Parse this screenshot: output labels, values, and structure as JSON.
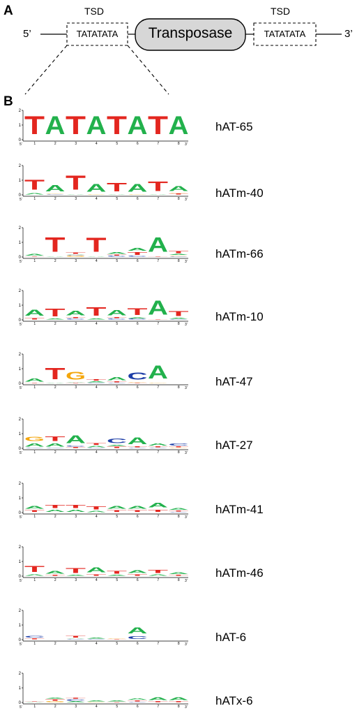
{
  "panel_a": {
    "label": "A",
    "tsd_left_label": "TSD",
    "tsd_right_label": "TSD",
    "five_prime": "5’",
    "three_prime": "3’",
    "tsd_left_seq": "TATATATA",
    "tsd_right_seq": "TATATATA",
    "transposase_label": "Transposase"
  },
  "panel_b": {
    "label": "B",
    "axis": {
      "y_ticks": [
        "0",
        "1",
        "2"
      ],
      "x_ticks": [
        "1",
        "2",
        "3",
        "4",
        "5",
        "6",
        "7",
        "8"
      ],
      "start": "5’",
      "end": "3’"
    },
    "colors": {
      "A": "#22b14c",
      "T": "#e3261f",
      "G": "#f4a60c",
      "C": "#1f3fa8"
    }
  },
  "chart_data": {
    "type": "sequence-logo",
    "y_range": [
      0,
      2
    ],
    "positions": [
      1,
      2,
      3,
      4,
      5,
      6,
      7,
      8
    ],
    "logos": [
      {
        "name": "hAT-65",
        "stacks": [
          [
            [
              "T",
              2
            ]
          ],
          [
            [
              "A",
              2
            ]
          ],
          [
            [
              "T",
              2
            ]
          ],
          [
            [
              "A",
              2
            ]
          ],
          [
            [
              "T",
              2
            ]
          ],
          [
            [
              "A",
              2
            ]
          ],
          [
            [
              "T",
              2
            ]
          ],
          [
            [
              "A",
              2
            ]
          ]
        ]
      },
      {
        "name": "hATm-40",
        "stacks": [
          [
            [
              "A",
              0.15
            ],
            [
              "T",
              1.1
            ]
          ],
          [
            [
              "C",
              0.05
            ],
            [
              "G",
              0.05
            ],
            [
              "A",
              0.7
            ]
          ],
          [
            [
              "A",
              0.05
            ],
            [
              "T",
              1.55
            ]
          ],
          [
            [
              "G",
              0.05
            ],
            [
              "A",
              0.85
            ]
          ],
          [
            [
              "A",
              0.05
            ],
            [
              "T",
              0.95
            ]
          ],
          [
            [
              "G",
              0.05
            ],
            [
              "A",
              0.85
            ]
          ],
          [
            [
              "A",
              0.05
            ],
            [
              "T",
              1.05
            ]
          ],
          [
            [
              "T",
              0.1
            ],
            [
              "G",
              0.05
            ],
            [
              "A",
              0.55
            ]
          ]
        ]
      },
      {
        "name": "hATm-66",
        "stacks": [
          [
            [
              "T",
              0.05
            ],
            [
              "A",
              0.2
            ]
          ],
          [
            [
              "A",
              0.05
            ],
            [
              "T",
              1.6
            ]
          ],
          [
            [
              "G",
              0.08
            ],
            [
              "C",
              0.06
            ],
            [
              "A",
              0.06
            ],
            [
              "T",
              0.12
            ]
          ],
          [
            [
              "A",
              0.05
            ],
            [
              "T",
              1.55
            ]
          ],
          [
            [
              "C",
              0.08
            ],
            [
              "T",
              0.1
            ],
            [
              "A",
              0.2
            ]
          ],
          [
            [
              "C",
              0.08
            ],
            [
              "T",
              0.3
            ],
            [
              "A",
              0.3
            ]
          ],
          [
            [
              "T",
              0.05
            ],
            [
              "A",
              1.6
            ]
          ],
          [
            [
              "C",
              0.06
            ],
            [
              "G",
              0.06
            ],
            [
              "A",
              0.1
            ],
            [
              "T",
              0.25
            ]
          ]
        ]
      },
      {
        "name": "hATm-10",
        "stacks": [
          [
            [
              "T",
              0.15
            ],
            [
              "A",
              0.65
            ]
          ],
          [
            [
              "A",
              0.08
            ],
            [
              "T",
              0.85
            ]
          ],
          [
            [
              "C",
              0.1
            ],
            [
              "T",
              0.1
            ],
            [
              "A",
              0.5
            ]
          ],
          [
            [
              "A",
              0.1
            ],
            [
              "T",
              0.95
            ]
          ],
          [
            [
              "C",
              0.1
            ],
            [
              "T",
              0.1
            ],
            [
              "A",
              0.6
            ]
          ],
          [
            [
              "C",
              0.08
            ],
            [
              "A",
              0.1
            ],
            [
              "T",
              0.75
            ]
          ],
          [
            [
              "T",
              0.05
            ],
            [
              "A",
              1.55
            ]
          ],
          [
            [
              "C",
              0.05
            ],
            [
              "A",
              0.1
            ],
            [
              "T",
              0.55
            ]
          ]
        ]
      },
      {
        "name": "hAT-47",
        "stacks": [
          [
            [
              "T",
              0.05
            ],
            [
              "A",
              0.35
            ]
          ],
          [
            [
              "A",
              0.05
            ],
            [
              "T",
              1.25
            ]
          ],
          [
            [
              "T",
              0.05
            ],
            [
              "A",
              0.05
            ],
            [
              "G",
              0.85
            ]
          ],
          [
            [
              "C",
              0.05
            ],
            [
              "A",
              0.1
            ],
            [
              "T",
              0.15
            ]
          ],
          [
            [
              "C",
              0.05
            ],
            [
              "T",
              0.1
            ],
            [
              "A",
              0.35
            ]
          ],
          [
            [
              "T",
              0.05
            ],
            [
              "G",
              0.05
            ],
            [
              "C",
              0.8
            ]
          ],
          [
            [
              "G",
              0.05
            ],
            [
              "A",
              1.45
            ]
          ],
          []
        ]
      },
      {
        "name": "hAT-27",
        "stacks": [
          [
            [
              "C",
              0.05
            ],
            [
              "A",
              0.35
            ],
            [
              "G",
              0.45
            ]
          ],
          [
            [
              "C",
              0.05
            ],
            [
              "A",
              0.35
            ],
            [
              "T",
              0.5
            ]
          ],
          [
            [
              "T",
              0.1
            ],
            [
              "C",
              0.1
            ],
            [
              "A",
              0.85
            ]
          ],
          [
            [
              "C",
              0.05
            ],
            [
              "A",
              0.15
            ],
            [
              "T",
              0.2
            ]
          ],
          [
            [
              "T",
              0.15
            ],
            [
              "A",
              0.1
            ],
            [
              "C",
              0.5
            ]
          ],
          [
            [
              "C",
              0.05
            ],
            [
              "T",
              0.1
            ],
            [
              "A",
              0.75
            ]
          ],
          [
            [
              "C",
              0.05
            ],
            [
              "T",
              0.1
            ],
            [
              "A",
              0.25
            ]
          ],
          [
            [
              "G",
              0.05
            ],
            [
              "T",
              0.1
            ],
            [
              "C",
              0.25
            ]
          ]
        ]
      },
      {
        "name": "hATm-41",
        "stacks": [
          [
            [
              "T",
              0.2
            ],
            [
              "A",
              0.3
            ]
          ],
          [
            [
              "A",
              0.25
            ],
            [
              "T",
              0.35
            ]
          ],
          [
            [
              "A",
              0.25
            ],
            [
              "T",
              0.35
            ]
          ],
          [
            [
              "A",
              0.15
            ],
            [
              "T",
              0.35
            ]
          ],
          [
            [
              "T",
              0.2
            ],
            [
              "A",
              0.3
            ]
          ],
          [
            [
              "T",
              0.2
            ],
            [
              "A",
              0.3
            ]
          ],
          [
            [
              "T",
              0.25
            ],
            [
              "A",
              0.5
            ]
          ],
          [
            [
              "C",
              0.05
            ],
            [
              "T",
              0.1
            ],
            [
              "A",
              0.2
            ]
          ]
        ]
      },
      {
        "name": "hATm-46",
        "stacks": [
          [
            [
              "A",
              0.15
            ],
            [
              "T",
              0.65
            ]
          ],
          [
            [
              "T",
              0.1
            ],
            [
              "A",
              0.3
            ]
          ],
          [
            [
              "A",
              0.1
            ],
            [
              "T",
              0.55
            ]
          ],
          [
            [
              "T",
              0.15
            ],
            [
              "A",
              0.55
            ]
          ],
          [
            [
              "A",
              0.1
            ],
            [
              "T",
              0.3
            ]
          ],
          [
            [
              "T",
              0.15
            ],
            [
              "A",
              0.3
            ]
          ],
          [
            [
              "A",
              0.15
            ],
            [
              "T",
              0.35
            ]
          ],
          [
            [
              "T",
              0.1
            ],
            [
              "A",
              0.2
            ]
          ]
        ]
      },
      {
        "name": "hAT-6",
        "stacks": [
          [
            [
              "T",
              0.1
            ],
            [
              "C",
              0.2
            ]
          ],
          [],
          [
            [
              "C",
              0.05
            ],
            [
              "A",
              0.05
            ],
            [
              "T",
              0.2
            ]
          ],
          [
            [
              "C",
              0.05
            ],
            [
              "A",
              0.1
            ]
          ],
          [
            [
              "T",
              0.05
            ],
            [
              "G",
              0.05
            ]
          ],
          [
            [
              "C",
              0.3
            ],
            [
              "A",
              0.65
            ]
          ],
          [],
          []
        ]
      },
      {
        "name": "hATx-6",
        "stacks": [
          [
            [
              "A",
              0.05
            ],
            [
              "T",
              0.05
            ]
          ],
          [
            [
              "G",
              0.1
            ],
            [
              "T",
              0.15
            ],
            [
              "A",
              0.1
            ]
          ],
          [
            [
              "A",
              0.1
            ],
            [
              "C",
              0.15
            ],
            [
              "T",
              0.1
            ]
          ],
          [
            [
              "G",
              0.05
            ],
            [
              "A",
              0.1
            ]
          ],
          [
            [
              "T",
              0.05
            ],
            [
              "A",
              0.1
            ]
          ],
          [
            [
              "C",
              0.05
            ],
            [
              "T",
              0.1
            ],
            [
              "A",
              0.15
            ]
          ],
          [
            [
              "T",
              0.1
            ],
            [
              "A",
              0.3
            ]
          ],
          [
            [
              "T",
              0.1
            ],
            [
              "A",
              0.3
            ]
          ]
        ]
      }
    ]
  }
}
